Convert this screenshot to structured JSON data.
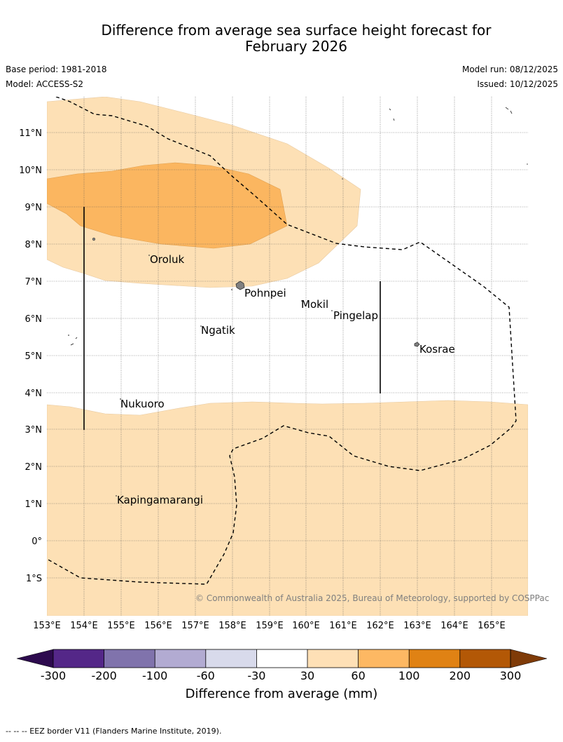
{
  "header": {
    "title_line1": "Difference from average sea surface height forecast for",
    "title_line2": "February 2026",
    "base_period": "Base period: 1981-2018",
    "model": "Model: ACCESS-S2",
    "model_run": "Model run: 08/12/2025",
    "issued": "Issued: 10/12/2025"
  },
  "map": {
    "lon_ticks": [
      "153°E",
      "154°E",
      "155°E",
      "156°E",
      "157°E",
      "158°E",
      "159°E",
      "160°E",
      "161°E",
      "162°E",
      "163°E",
      "164°E",
      "165°E"
    ],
    "lat_ticks": [
      "11°N",
      "10°N",
      "9°N",
      "8°N",
      "7°N",
      "6°N",
      "5°N",
      "4°N",
      "3°N",
      "2°N",
      "1°N",
      "0°",
      "1°S"
    ],
    "places": [
      {
        "id": "oroluk",
        "name": "Oroluk"
      },
      {
        "id": "pohnpei",
        "name": "Pohnpei"
      },
      {
        "id": "mokil",
        "name": "Mokil"
      },
      {
        "id": "pingelap",
        "name": "Pingelap"
      },
      {
        "id": "ngatik",
        "name": "Ngatik"
      },
      {
        "id": "kosrae",
        "name": "Kosrae"
      },
      {
        "id": "nukuoro",
        "name": "Nukuoro"
      },
      {
        "id": "kapingamarangi",
        "name": "Kapingamarangi"
      }
    ],
    "copyright": "© Commonwealth of Australia 2025, Bureau of Meteorology, supported by COSPPac",
    "colors": {
      "level_30_60": "#fde0b5",
      "level_60_100": "#fbb660",
      "land": "#808080"
    }
  },
  "colorbar": {
    "title": "Difference from average (mm)",
    "tick_labels": [
      "-300",
      "-200",
      "-100",
      "-60",
      "-30",
      "30",
      "60",
      "100",
      "200",
      "300"
    ],
    "bins": [
      {
        "range": "below -300",
        "color": "#2d0a4e"
      },
      {
        "range": "-300 to -200",
        "color": "#542788"
      },
      {
        "range": "-200 to -100",
        "color": "#8073ac"
      },
      {
        "range": "-100 to -60",
        "color": "#b2abd2"
      },
      {
        "range": "-60 to -30",
        "color": "#d8daeb"
      },
      {
        "range": "-30 to 30",
        "color": "#ffffff"
      },
      {
        "range": "30 to 60",
        "color": "#fee0b6"
      },
      {
        "range": "60 to 100",
        "color": "#fdb863"
      },
      {
        "range": "100 to 200",
        "color": "#e08214"
      },
      {
        "range": "200 to 300",
        "color": "#b35806"
      },
      {
        "range": "above 300",
        "color": "#7f3b08"
      }
    ]
  },
  "footer": {
    "legend": "-- -- -- EEZ border V11 (Flanders Marine Institute, 2019)."
  }
}
